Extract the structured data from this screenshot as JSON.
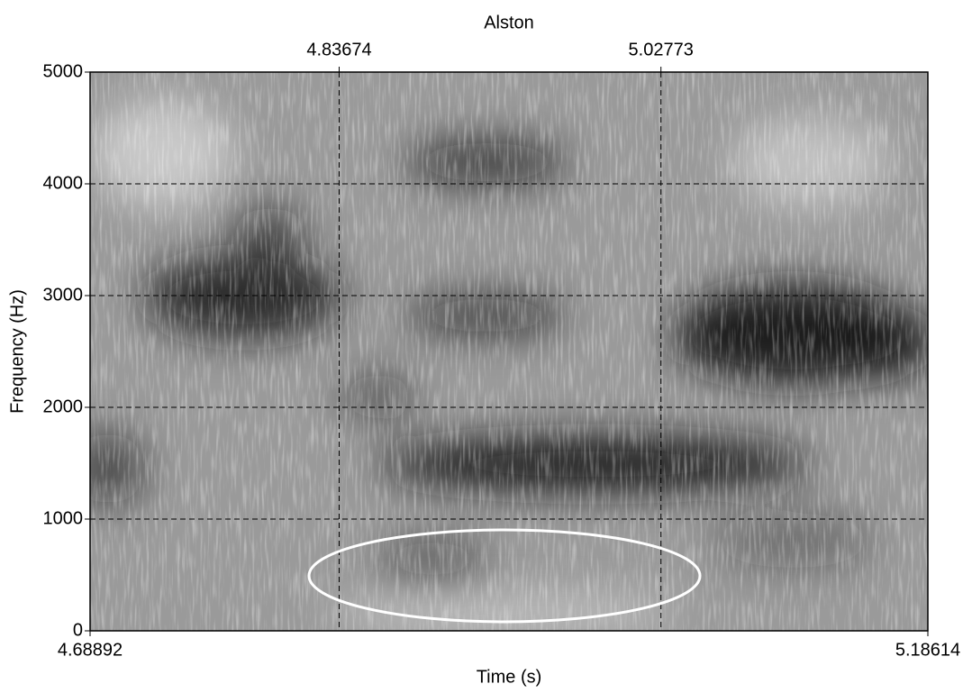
{
  "chart_data": {
    "type": "spectrogram",
    "title": "Alston",
    "x_label": "Time (s)",
    "y_label": "Frequency (Hz)",
    "xlim": [
      4.68892,
      5.18614
    ],
    "xticks": [
      4.68892,
      5.18614
    ],
    "x2ticks": [
      4.83674,
      5.02773
    ],
    "ylim": [
      0,
      5000
    ],
    "yticks": [
      0,
      1000,
      2000,
      3000,
      4000,
      5000
    ],
    "grid": true
  }
}
